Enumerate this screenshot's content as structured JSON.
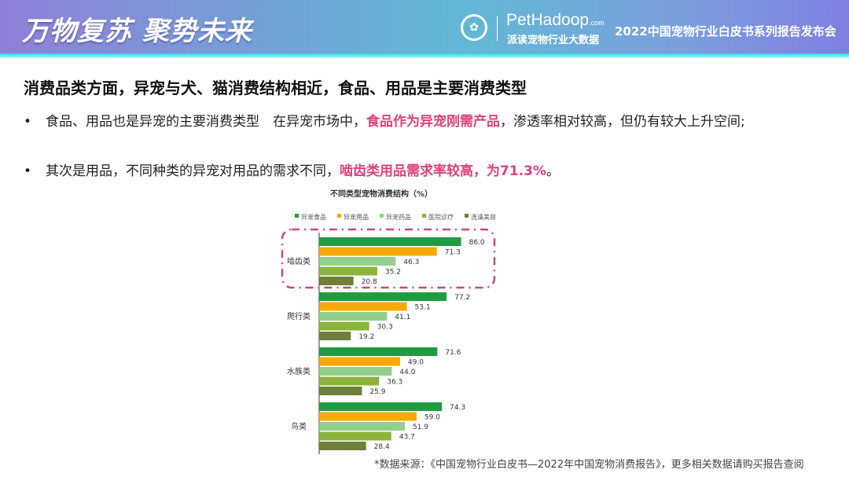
{
  "header": {
    "slogan": "万物复苏 聚势未来",
    "brand": "PetHadoop",
    "brand_suffix": ".com",
    "brand_sub": "派读宠物行业大数据",
    "event": "2022中国宠物行业白皮书系列报告发布会",
    "logo_icon": "seal-logo"
  },
  "heading": "消费品类方面，异宠与犬、猫消费结构相近，食品、用品是主要消费类型",
  "bullets": [
    {
      "pre": "食品、用品也是异宠的主要消费类型　在异宠市场中，",
      "highlight": "食品作为异宠刚需产品",
      "post": "，渗透率相对较高，但仍有较大上升空间;"
    },
    {
      "pre": "其次是用品，不同种类的异宠对用品的需求不同，",
      "highlight": "啮齿类用品需求率较高，为71.3%",
      "post": "。"
    }
  ],
  "chart_data": {
    "type": "bar",
    "orientation": "horizontal",
    "title": "不同类型宠物消费结构（%）",
    "categories": [
      "啮齿类",
      "爬行类",
      "水族类",
      "鸟类"
    ],
    "series": [
      {
        "name": "异宠食品",
        "color": "#1f9c3f",
        "values": [
          86.0,
          77.2,
          71.6,
          74.3
        ]
      },
      {
        "name": "异宠用品",
        "color": "#f6a900",
        "values": [
          71.3,
          53.1,
          49.0,
          59.0
        ]
      },
      {
        "name": "异宠药品",
        "color": "#92cf8c",
        "values": [
          46.3,
          41.1,
          44.0,
          51.9
        ]
      },
      {
        "name": "医院诊疗",
        "color": "#8db43a",
        "values": [
          35.2,
          30.3,
          36.3,
          43.7
        ]
      },
      {
        "name": "洗澡美容",
        "color": "#6f7f3c",
        "values": [
          20.8,
          19.2,
          25.9,
          28.4
        ]
      }
    ],
    "legend": "top",
    "grid": false,
    "highlight_category": "啮齿类",
    "highlight_color": "#c8487a"
  },
  "footer": "*数据来源：《中国宠物行业白皮书—2022年中国宠物消费报告》，更多相关数据请购买报告查阅"
}
